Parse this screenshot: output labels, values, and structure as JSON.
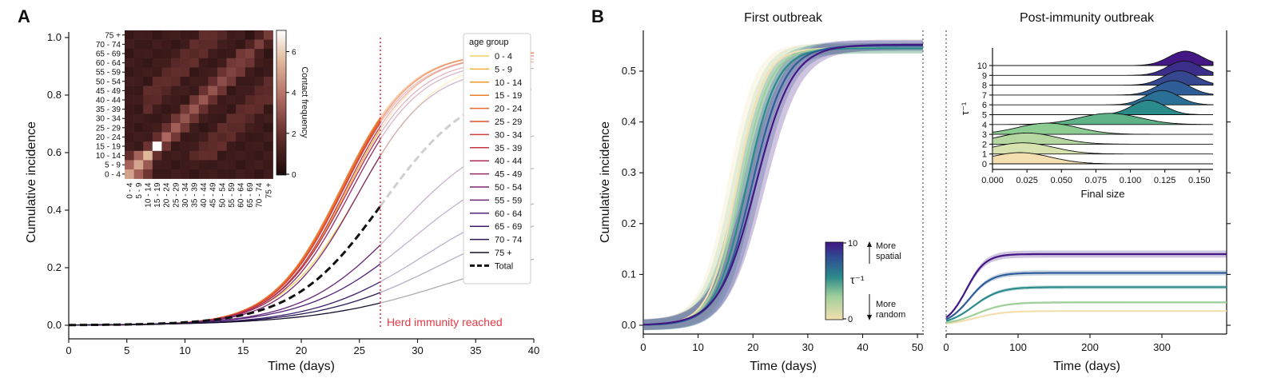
{
  "panels": {
    "a": "A",
    "b": "B"
  },
  "panel_a": {
    "xlabel": "Time (days)",
    "ylabel": "Cumulative incidence",
    "xticks": [
      "0",
      "5",
      "10",
      "15",
      "20",
      "25",
      "30",
      "35",
      "40"
    ],
    "yticks": [
      "0.0",
      "0.2",
      "0.4",
      "0.6",
      "0.8",
      "1.0"
    ],
    "herd_label": "Herd immunity reached",
    "herd_day": 26.8,
    "legend_title": "age group",
    "total_label": "Total",
    "heatmap_labels": [
      "0 - 4",
      "5 - 9",
      "10 - 14",
      "15 - 19",
      "20 - 24",
      "25 - 29",
      "30 - 34",
      "35 - 39",
      "40 - 44",
      "45 - 49",
      "50 - 54",
      "55 - 59",
      "60 - 64",
      "65 - 69",
      "70 - 74",
      "75 +"
    ],
    "colorbar_label": "Contact frequency",
    "colorbar_ticks": [
      "0",
      "2",
      "4",
      "6"
    ]
  },
  "panel_b": {
    "title_left": "First outbreak",
    "title_right": "Post-immunity outbreak",
    "xlabel_left": "Time (days)",
    "xlabel_right": "Time (days)",
    "ylabel": "Cumulative incidence",
    "xticks_left": [
      "0",
      "10",
      "20",
      "30",
      "40",
      "50"
    ],
    "xticks_right": [
      "0",
      "100",
      "200",
      "300"
    ],
    "yticks": [
      "0.0",
      "0.1",
      "0.2",
      "0.3",
      "0.4",
      "0.5"
    ],
    "colorbar_label": "τ⁻¹",
    "colorbar_max": "10",
    "colorbar_min": "0",
    "more_spatial": [
      "More",
      "spatial"
    ],
    "more_random": [
      "More",
      "random"
    ],
    "inset_xlabel": "Final size",
    "inset_ylabel": "τ⁻¹",
    "inset_xticks": [
      "0.000",
      "0.025",
      "0.050",
      "0.075",
      "0.100",
      "0.125",
      "0.150"
    ],
    "inset_yticks": [
      "0",
      "1",
      "2",
      "3",
      "4",
      "5",
      "6",
      "7",
      "8",
      "9",
      "10"
    ]
  },
  "chart_data": [
    {
      "type": "line",
      "title": "",
      "xlabel": "Time (days)",
      "ylabel": "Cumulative incidence",
      "xlim": [
        0,
        40
      ],
      "ylim": [
        -0.03,
        1.05
      ],
      "herd_immunity_day": 26.8,
      "series": [
        {
          "name": "0 - 4",
          "color": "#f2d45c",
          "final": 0.93,
          "midpoint": 25.0,
          "rate": 0.3
        },
        {
          "name": "5 - 9",
          "color": "#f5b03a",
          "final": 0.95,
          "midpoint": 24.0,
          "rate": 0.33
        },
        {
          "name": "10 - 14",
          "color": "#f39a2e",
          "final": 0.95,
          "midpoint": 23.6,
          "rate": 0.34
        },
        {
          "name": "15 - 19",
          "color": "#ee7e2a",
          "final": 0.95,
          "midpoint": 23.4,
          "rate": 0.34
        },
        {
          "name": "20 - 24",
          "color": "#e86a2f",
          "final": 0.95,
          "midpoint": 23.5,
          "rate": 0.34
        },
        {
          "name": "25 - 29",
          "color": "#df5336",
          "final": 0.95,
          "midpoint": 23.6,
          "rate": 0.34
        },
        {
          "name": "30 - 34",
          "color": "#d2423c",
          "final": 0.94,
          "midpoint": 23.6,
          "rate": 0.34
        },
        {
          "name": "35 - 39",
          "color": "#c23645",
          "final": 0.94,
          "midpoint": 23.8,
          "rate": 0.34
        },
        {
          "name": "40 - 44",
          "color": "#ad2d55",
          "final": 0.93,
          "midpoint": 24.0,
          "rate": 0.33
        },
        {
          "name": "45 - 49",
          "color": "#972a64",
          "final": 0.92,
          "midpoint": 24.2,
          "rate": 0.33
        },
        {
          "name": "50 - 54",
          "color": "#7d2870",
          "final": 0.9,
          "midpoint": 24.8,
          "rate": 0.32
        },
        {
          "name": "55 - 59",
          "color": "#672679",
          "final": 0.7,
          "midpoint": 28.5,
          "rate": 0.24
        },
        {
          "name": "60 - 64",
          "color": "#52237c",
          "final": 0.6,
          "midpoint": 29.5,
          "rate": 0.22
        },
        {
          "name": "65 - 69",
          "color": "#3d1f6e",
          "final": 0.48,
          "midpoint": 30.5,
          "rate": 0.21
        },
        {
          "name": "70 - 74",
          "color": "#2a1a54",
          "final": 0.42,
          "midpoint": 32.0,
          "rate": 0.19
        },
        {
          "name": "75 +",
          "color": "#15112c",
          "final": 0.3,
          "midpoint": 33.0,
          "rate": 0.17
        },
        {
          "name": "Total",
          "color": "#111111",
          "final": 0.85,
          "midpoint": 27.0,
          "rate": 0.26,
          "style": "dashed"
        }
      ]
    },
    {
      "type": "heatmap",
      "title": "Contact frequency (inset)",
      "categories": [
        "0 - 4",
        "5 - 9",
        "10 - 14",
        "15 - 19",
        "20 - 24",
        "25 - 29",
        "30 - 34",
        "35 - 39",
        "40 - 44",
        "45 - 49",
        "50 - 54",
        "55 - 59",
        "60 - 64",
        "65 - 69",
        "70 - 74",
        "75 +"
      ],
      "colorbar_range": [
        0,
        7
      ]
    },
    {
      "type": "line",
      "title": "First outbreak",
      "xlabel": "Time (days)",
      "ylabel": "Cumulative incidence",
      "xlim": [
        0,
        51
      ],
      "ylim": [
        -0.02,
        0.58
      ],
      "series": [
        {
          "name": "τ⁻¹=0",
          "color": "#f4dfb0",
          "final": 0.545,
          "midpoint": 17.0,
          "rate": 0.4
        },
        {
          "name": "τ⁻¹=3",
          "color": "#9fcf9b",
          "final": 0.545,
          "midpoint": 17.8,
          "rate": 0.38
        },
        {
          "name": "τ⁻¹=5",
          "color": "#2b8a8a",
          "final": 0.545,
          "midpoint": 18.8,
          "rate": 0.36
        },
        {
          "name": "τ⁻¹=7",
          "color": "#2f5d97",
          "final": 0.55,
          "midpoint": 19.8,
          "rate": 0.33
        },
        {
          "name": "τ⁻¹=10",
          "color": "#431784",
          "final": 0.552,
          "midpoint": 20.5,
          "rate": 0.3
        }
      ]
    },
    {
      "type": "line",
      "title": "Post-immunity outbreak",
      "xlabel": "Time (days)",
      "xlim": [
        0,
        390
      ],
      "ylim": [
        -0.02,
        0.58
      ],
      "series": [
        {
          "name": "τ⁻¹=0",
          "color": "#f4dfb0",
          "final": 0.028,
          "midpoint": 40,
          "rate": 0.05
        },
        {
          "name": "τ⁻¹=3",
          "color": "#9fcf9b",
          "final": 0.045,
          "midpoint": 42,
          "rate": 0.05
        },
        {
          "name": "τ⁻¹=5",
          "color": "#2b8a8a",
          "final": 0.075,
          "midpoint": 38,
          "rate": 0.055
        },
        {
          "name": "τ⁻¹=7",
          "color": "#2f5d97",
          "final": 0.103,
          "midpoint": 32,
          "rate": 0.065
        },
        {
          "name": "τ⁻¹=10",
          "color": "#431784",
          "final": 0.14,
          "midpoint": 28,
          "rate": 0.075
        }
      ]
    },
    {
      "type": "area",
      "title": "Final size distribution (ridgeline inset)",
      "xlabel": "Final size",
      "ylabel": "τ⁻¹",
      "xlim": [
        0,
        0.16
      ],
      "categories": [
        "0",
        "1",
        "2",
        "3",
        "4",
        "5",
        "6",
        "7",
        "8",
        "9",
        "10"
      ],
      "peaks": [
        0.02,
        0.022,
        0.025,
        0.04,
        0.085,
        0.113,
        0.123,
        0.131,
        0.136,
        0.139,
        0.14
      ],
      "colors": [
        "#f4dfb0",
        "#d7e3ae",
        "#b5d8a2",
        "#8ccb92",
        "#5fb287",
        "#2b8a8a",
        "#2a6f95",
        "#2f5d97",
        "#34478f",
        "#3b2d8a",
        "#431784"
      ]
    }
  ]
}
